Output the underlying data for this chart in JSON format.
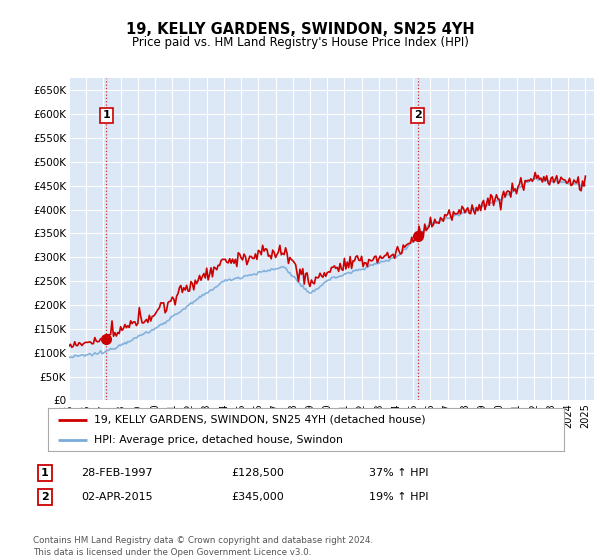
{
  "title": "19, KELLY GARDENS, SWINDON, SN25 4YH",
  "subtitle": "Price paid vs. HM Land Registry's House Price Index (HPI)",
  "ylabel_ticks": [
    "£0",
    "£50K",
    "£100K",
    "£150K",
    "£200K",
    "£250K",
    "£300K",
    "£350K",
    "£400K",
    "£450K",
    "£500K",
    "£550K",
    "£600K",
    "£650K"
  ],
  "ytick_values": [
    0,
    50000,
    100000,
    150000,
    200000,
    250000,
    300000,
    350000,
    400000,
    450000,
    500000,
    550000,
    600000,
    650000
  ],
  "ylim": [
    0,
    675000
  ],
  "xlim_start": 1995.0,
  "xlim_end": 2025.5,
  "background_color": "#dce8f5",
  "grid_color": "#ffffff",
  "sale1_date": 1997.16,
  "sale1_price": 128500,
  "sale1_label": "1",
  "sale2_date": 2015.25,
  "sale2_price": 345000,
  "sale2_label": "2",
  "legend_line1": "19, KELLY GARDENS, SWINDON, SN25 4YH (detached house)",
  "legend_line2": "HPI: Average price, detached house, Swindon",
  "table_row1": [
    "1",
    "28-FEB-1997",
    "£128,500",
    "37% ↑ HPI"
  ],
  "table_row2": [
    "2",
    "02-APR-2015",
    "£345,000",
    "19% ↑ HPI"
  ],
  "footer": "Contains HM Land Registry data © Crown copyright and database right 2024.\nThis data is licensed under the Open Government Licence v3.0.",
  "red_line_color": "#cc0000",
  "blue_line_color": "#7aabdb",
  "dot_color": "#cc0000"
}
